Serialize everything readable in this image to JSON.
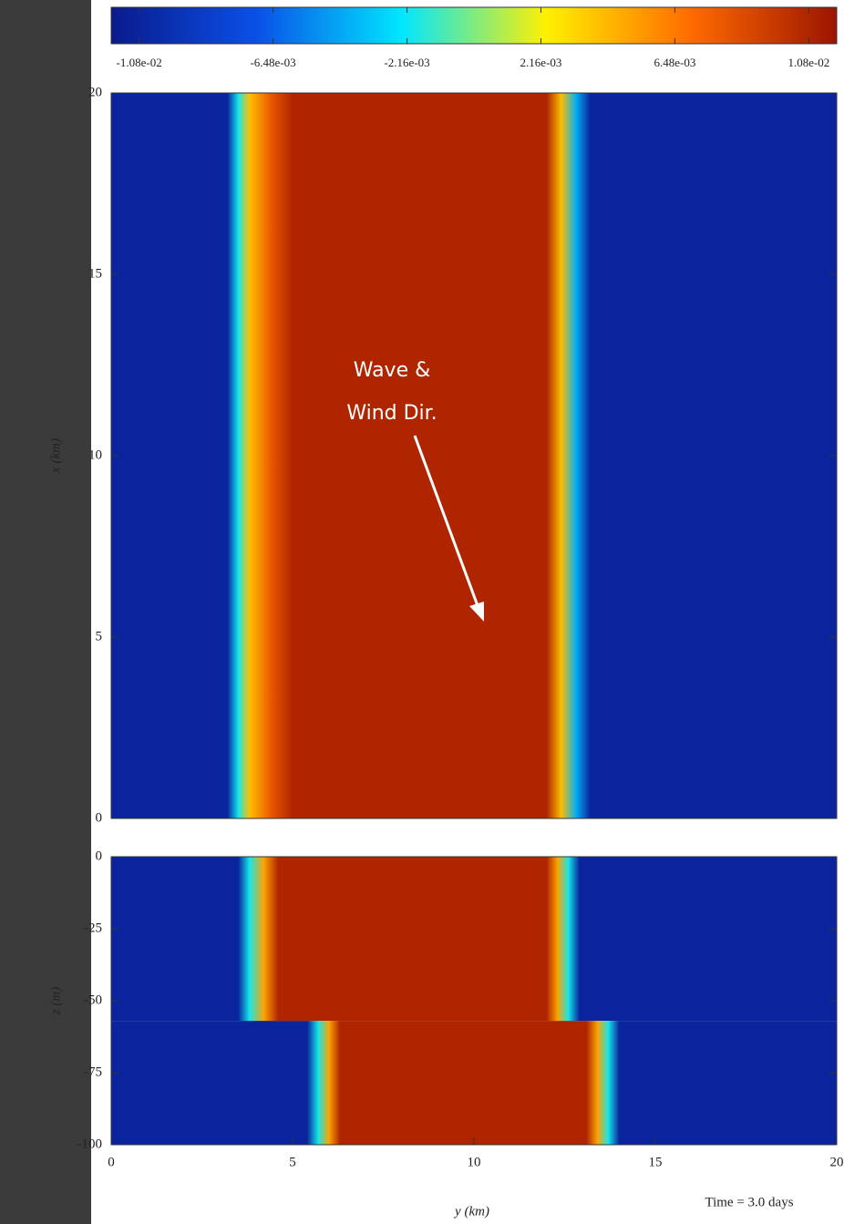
{
  "chart_data": [
    {
      "type": "colorbar",
      "clim": [
        -0.0117,
        0.0117
      ],
      "colors": [
        "#0a1a8c",
        "#0a50e6",
        "#00e6ff",
        "#fff000",
        "#ff6a00",
        "#9b1500"
      ],
      "ticks": [
        {
          "value": -0.0108,
          "label": "-1.08e-02"
        },
        {
          "value": -0.00648,
          "label": "-6.48e-03"
        },
        {
          "value": -0.00216,
          "label": "-2.16e-03"
        },
        {
          "value": 0.00216,
          "label": "2.16e-03"
        },
        {
          "value": 0.00648,
          "label": "6.48e-03"
        },
        {
          "value": 0.0108,
          "label": "1.08e-02"
        }
      ]
    },
    {
      "type": "heatmap",
      "ylabel": "x (km)",
      "xlim": [
        0,
        20
      ],
      "ylim": [
        0,
        20
      ],
      "yticks": [
        0,
        5,
        10,
        15,
        20
      ],
      "annotation": [
        "Wave &",
        "Wind Dir."
      ],
      "layers": [
        {
          "zlim": [
            0,
            20
          ],
          "y": [
            0,
            3.2,
            3.5,
            3.8,
            4.4,
            5.0,
            12.0,
            12.4,
            12.8,
            13.2,
            20
          ],
          "values": [
            -0.0108,
            -0.0108,
            -0.002,
            0.004,
            0.008,
            0.0108,
            0.0108,
            0.004,
            -0.004,
            -0.0108,
            -0.0108
          ]
        }
      ]
    },
    {
      "type": "heatmap",
      "ylabel": "z (m)",
      "xlabel": "y (km)",
      "xlim": [
        0,
        20
      ],
      "ylim": [
        -100,
        0
      ],
      "yticks": [
        0,
        -25,
        -50,
        -75,
        -100
      ],
      "xticks": [
        0,
        5,
        10,
        15,
        20
      ],
      "annotation": [
        "Time = 3.0 days"
      ],
      "layers": [
        {
          "zlim": [
            -57,
            0
          ],
          "y": [
            0,
            3.5,
            3.8,
            4.2,
            4.6,
            12.0,
            12.3,
            12.6,
            12.9,
            20
          ],
          "values": [
            -0.0108,
            -0.0108,
            -0.002,
            0.005,
            0.0108,
            0.0108,
            0.005,
            -0.002,
            -0.0108,
            -0.0108
          ]
        },
        {
          "zlim": [
            -100,
            -57
          ],
          "y": [
            0,
            5.4,
            5.7,
            6.0,
            6.3,
            13.1,
            13.4,
            13.7,
            14.0,
            20
          ],
          "values": [
            -0.0108,
            -0.0108,
            -0.002,
            0.005,
            0.0108,
            0.0108,
            0.005,
            -0.002,
            -0.0108,
            -0.0108
          ]
        }
      ]
    }
  ]
}
